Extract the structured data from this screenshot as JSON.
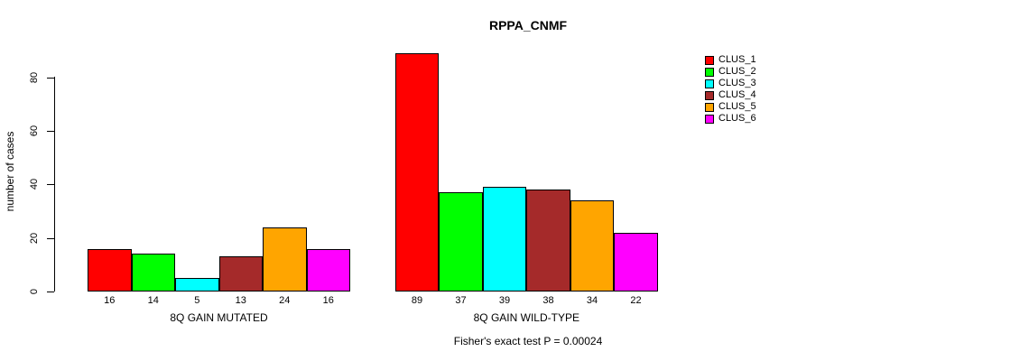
{
  "chart_data": {
    "type": "bar",
    "title": "RPPA_CNMF",
    "ylabel": "number of cases",
    "subtitle": "Fisher's exact test P = 0.00024",
    "yticks": [
      0,
      20,
      40,
      60,
      80
    ],
    "ylim": [
      0,
      89
    ],
    "grid": false,
    "legend_position": "right-outside",
    "categories": [
      "CLUS_1",
      "CLUS_2",
      "CLUS_3",
      "CLUS_4",
      "CLUS_5",
      "CLUS_6"
    ],
    "series_colors": [
      "#FF0000",
      "#00FF00",
      "#00FFFF",
      "#A52A2A",
      "#FFA500",
      "#FF00FF"
    ],
    "groups": [
      {
        "label": "8Q GAIN MUTATED",
        "values": [
          16,
          14,
          5,
          13,
          24,
          16
        ]
      },
      {
        "label": "8Q GAIN WILD-TYPE",
        "values": [
          89,
          37,
          39,
          38,
          34,
          22
        ]
      }
    ],
    "legend": [
      {
        "label": "CLUS_1",
        "color": "#FF0000"
      },
      {
        "label": "CLUS_2",
        "color": "#00FF00"
      },
      {
        "label": "CLUS_3",
        "color": "#00FFFF"
      },
      {
        "label": "CLUS_4",
        "color": "#A52A2A"
      },
      {
        "label": "CLUS_5",
        "color": "#FFA500"
      },
      {
        "label": "CLUS_6",
        "color": "#FF00FF"
      }
    ]
  }
}
